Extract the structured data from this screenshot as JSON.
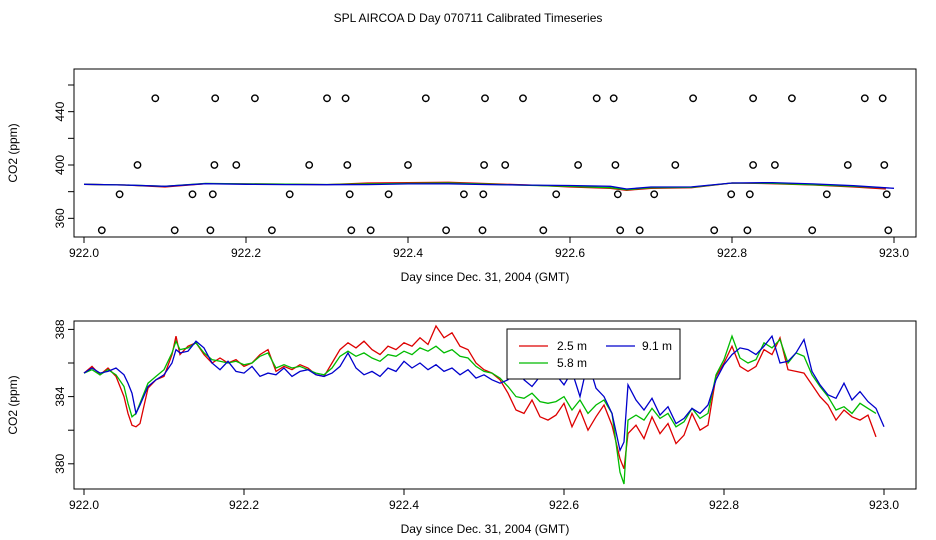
{
  "title": "SPL AIRCOA D  Day 070711  Calibrated Timeseries",
  "chart_data": [
    {
      "type": "scatter",
      "xlabel": "Day since Dec. 31, 2004 (GMT)",
      "ylabel": "CO2 (ppm)",
      "xlim": [
        922.0,
        923.0
      ],
      "ylim": [
        346,
        472
      ],
      "xticks": [
        922.0,
        922.2,
        922.4,
        922.6,
        922.8,
        923.0
      ],
      "xtick_labels": [
        "922.0",
        "922.2",
        "922.4",
        "922.6",
        "922.8",
        "923.0"
      ],
      "yticks": [
        360,
        380,
        400,
        420,
        440,
        460
      ],
      "ytick_labels": [
        "360",
        "",
        "400",
        "",
        "440",
        ""
      ],
      "calibration_points": {
        "name": "calibration samples",
        "values_450": [
          922.088,
          922.162,
          922.211,
          922.3,
          922.323,
          922.422,
          922.495,
          922.542,
          922.633,
          922.654,
          922.752,
          922.826,
          922.874,
          922.964,
          922.986
        ],
        "values_400": [
          922.066,
          922.161,
          922.188,
          922.278,
          922.325,
          922.4,
          922.494,
          922.52,
          922.61,
          922.656,
          922.73,
          922.826,
          922.853,
          922.943,
          922.988
        ],
        "values_378": [
          922.044,
          922.134,
          922.159,
          922.254,
          922.328,
          922.376,
          922.469,
          922.493,
          922.583,
          922.659,
          922.704,
          922.799,
          922.822,
          922.917,
          922.991
        ],
        "values_351": [
          922.022,
          922.112,
          922.156,
          922.232,
          922.33,
          922.354,
          922.447,
          922.492,
          922.567,
          922.662,
          922.686,
          922.778,
          922.819,
          922.899,
          922.993
        ]
      },
      "series": [
        {
          "name": "2.5 m",
          "color": "#dd0000",
          "x": [
            922.0,
            922.05,
            922.1,
            922.15,
            922.2,
            922.25,
            922.3,
            922.35,
            922.4,
            922.45,
            922.5,
            922.55,
            922.6,
            922.65,
            922.67,
            922.7,
            922.75,
            922.8,
            922.85,
            922.9,
            922.95,
            922.99
          ],
          "y": [
            385.5,
            385.0,
            383.5,
            386.0,
            385.8,
            385.6,
            385.3,
            386.5,
            386.8,
            387.0,
            386.0,
            385.0,
            383.5,
            382.5,
            381.0,
            382.5,
            383.0,
            386.5,
            386.0,
            385.0,
            383.5,
            382.0
          ]
        },
        {
          "name": "5.8 m",
          "color": "#00bb00",
          "x": [
            922.0,
            922.05,
            922.1,
            922.15,
            922.2,
            922.25,
            922.3,
            922.35,
            922.4,
            922.45,
            922.5,
            922.55,
            922.6,
            922.65,
            922.67,
            922.7,
            922.75,
            922.8,
            922.85,
            922.9,
            922.95,
            922.99
          ],
          "y": [
            385.5,
            385.0,
            384.0,
            386.2,
            385.8,
            385.7,
            385.4,
            385.8,
            386.2,
            386.5,
            385.6,
            384.8,
            384.0,
            383.0,
            381.5,
            383.0,
            383.3,
            386.5,
            386.3,
            385.2,
            384.0,
            382.8
          ]
        },
        {
          "name": "9.1 m",
          "color": "#0000cc",
          "x": [
            922.0,
            922.05,
            922.1,
            922.15,
            922.2,
            922.25,
            922.3,
            922.35,
            922.4,
            922.45,
            922.5,
            922.55,
            922.6,
            922.65,
            922.67,
            922.7,
            922.75,
            922.8,
            922.85,
            922.9,
            922.95,
            923.0
          ],
          "y": [
            385.5,
            385.0,
            384.0,
            386.0,
            385.5,
            385.3,
            385.2,
            385.3,
            385.8,
            385.9,
            385.3,
            384.9,
            384.6,
            384.0,
            382.0,
            383.5,
            383.6,
            386.5,
            386.8,
            385.8,
            384.5,
            382.5
          ]
        }
      ]
    },
    {
      "type": "line",
      "xlabel": "Day since Dec. 31, 2004 (GMT)",
      "ylabel": "CO2 (ppm)",
      "xlim": [
        922.0,
        923.0
      ],
      "ylim": [
        378.5,
        388.5
      ],
      "xticks": [
        922.0,
        922.2,
        922.4,
        922.6,
        922.8,
        923.0
      ],
      "xtick_labels": [
        "922.0",
        "922.2",
        "922.4",
        "922.6",
        "922.8",
        "923.0"
      ],
      "yticks": [
        380,
        382,
        384,
        386,
        388
      ],
      "ytick_labels": [
        "380",
        "",
        "384",
        "",
        "388"
      ],
      "legend": {
        "placement": "top-center",
        "entries": [
          "2.5 m",
          "9.1 m",
          "5.8 m"
        ]
      },
      "series": [
        {
          "name": "2.5 m",
          "color": "#dd0000",
          "x": [
            922.0,
            922.01,
            922.02,
            922.03,
            922.04,
            922.05,
            922.055,
            922.06,
            922.065,
            922.07,
            922.08,
            922.09,
            922.1,
            922.11,
            922.115,
            922.12,
            922.13,
            922.14,
            922.15,
            922.16,
            922.17,
            922.18,
            922.19,
            922.2,
            922.21,
            922.22,
            922.23,
            922.24,
            922.25,
            922.26,
            922.27,
            922.28,
            922.29,
            922.3,
            922.31,
            922.32,
            922.33,
            922.34,
            922.35,
            922.36,
            922.37,
            922.38,
            922.39,
            922.4,
            922.41,
            922.42,
            922.43,
            922.44,
            922.45,
            922.46,
            922.47,
            922.48,
            922.49,
            922.5,
            922.51,
            922.52,
            922.53,
            922.54,
            922.55,
            922.56,
            922.57,
            922.58,
            922.59,
            922.6,
            922.61,
            922.62,
            922.63,
            922.64,
            922.65,
            922.66,
            922.67,
            922.675,
            922.68,
            922.69,
            922.7,
            922.71,
            922.72,
            922.73,
            922.74,
            922.75,
            922.76,
            922.77,
            922.78,
            922.79,
            922.8,
            922.81,
            922.82,
            922.83,
            922.84,
            922.85,
            922.86,
            922.87,
            922.88,
            922.89,
            922.9,
            922.91,
            922.92,
            922.93,
            922.94,
            922.95,
            922.96,
            922.97,
            922.98,
            922.99
          ],
          "y": [
            385.4,
            385.8,
            385.3,
            385.7,
            385.2,
            384.0,
            383.0,
            382.3,
            382.2,
            382.4,
            384.5,
            385.0,
            385.2,
            386.5,
            387.6,
            386.5,
            387.0,
            387.2,
            386.5,
            386.0,
            386.3,
            386.0,
            386.2,
            385.8,
            386.0,
            386.5,
            386.8,
            385.5,
            385.8,
            385.6,
            385.9,
            385.7,
            385.3,
            385.2,
            386.0,
            386.8,
            387.2,
            386.9,
            387.3,
            386.8,
            386.5,
            387.0,
            386.8,
            387.2,
            387.0,
            387.5,
            387.1,
            388.2,
            387.5,
            387.8,
            387.0,
            386.8,
            386.0,
            385.6,
            385.4,
            385.0,
            384.2,
            383.2,
            383.0,
            383.8,
            382.8,
            382.6,
            382.9,
            383.6,
            382.2,
            383.2,
            382.0,
            382.8,
            383.5,
            382.3,
            380.3,
            379.7,
            381.8,
            382.3,
            381.5,
            382.8,
            381.8,
            382.4,
            381.2,
            381.7,
            383.0,
            382.0,
            382.3,
            385.2,
            386.0,
            387.0,
            385.8,
            385.5,
            385.8,
            386.8,
            386.5,
            387.5,
            385.6,
            385.5,
            385.4,
            384.7,
            384.0,
            383.5,
            382.6,
            383.2,
            382.8,
            382.6,
            382.9,
            381.6
          ]
        },
        {
          "name": "5.8 m",
          "color": "#00bb00",
          "x": [
            922.0,
            922.01,
            922.02,
            922.03,
            922.04,
            922.05,
            922.055,
            922.06,
            922.065,
            922.07,
            922.08,
            922.09,
            922.1,
            922.11,
            922.115,
            922.12,
            922.13,
            922.14,
            922.15,
            922.16,
            922.17,
            922.18,
            922.19,
            922.2,
            922.21,
            922.22,
            922.23,
            922.24,
            922.25,
            922.26,
            922.27,
            922.28,
            922.29,
            922.3,
            922.31,
            922.32,
            922.33,
            922.34,
            922.35,
            922.36,
            922.37,
            922.38,
            922.39,
            922.4,
            922.41,
            922.42,
            922.43,
            922.44,
            922.45,
            922.46,
            922.47,
            922.48,
            922.49,
            922.5,
            922.51,
            922.52,
            922.53,
            922.54,
            922.55,
            922.56,
            922.57,
            922.58,
            922.59,
            922.6,
            922.61,
            922.62,
            922.63,
            922.64,
            922.65,
            922.66,
            922.67,
            922.675,
            922.68,
            922.69,
            922.7,
            922.71,
            922.72,
            922.73,
            922.74,
            922.75,
            922.76,
            922.77,
            922.78,
            922.79,
            922.8,
            922.81,
            922.82,
            922.83,
            922.84,
            922.85,
            922.86,
            922.87,
            922.88,
            922.89,
            922.9,
            922.91,
            922.92,
            922.93,
            922.94,
            922.95,
            922.96,
            922.97,
            922.98,
            922.99
          ],
          "y": [
            385.4,
            385.6,
            385.3,
            385.6,
            385.3,
            384.6,
            383.6,
            382.8,
            383.0,
            383.6,
            384.8,
            385.2,
            385.6,
            386.6,
            387.3,
            386.8,
            386.9,
            387.2,
            386.6,
            386.2,
            386.1,
            386.0,
            386.1,
            385.9,
            386.0,
            386.4,
            386.6,
            385.7,
            385.9,
            385.7,
            385.8,
            385.6,
            385.4,
            385.3,
            385.7,
            386.4,
            386.7,
            386.4,
            386.6,
            386.3,
            386.1,
            386.5,
            386.4,
            386.7,
            386.5,
            386.9,
            386.7,
            387.0,
            386.6,
            386.8,
            386.4,
            386.3,
            385.8,
            385.5,
            385.4,
            385.1,
            384.6,
            384.0,
            383.9,
            384.2,
            383.7,
            383.6,
            383.7,
            384.0,
            383.2,
            383.8,
            383.0,
            383.5,
            383.8,
            383.0,
            379.5,
            378.8,
            382.6,
            382.9,
            382.6,
            383.3,
            382.7,
            383.0,
            382.2,
            382.5,
            383.3,
            382.7,
            383.0,
            385.3,
            386.2,
            387.6,
            386.3,
            386.0,
            386.2,
            387.2,
            386.9,
            387.4,
            386.0,
            386.6,
            386.4,
            385.3,
            384.6,
            384.0,
            383.2,
            383.4,
            383.0,
            383.6,
            383.3,
            383.0
          ]
        },
        {
          "name": "9.1 m",
          "color": "#0000cc",
          "x": [
            922.0,
            922.01,
            922.02,
            922.03,
            922.04,
            922.05,
            922.055,
            922.06,
            922.065,
            922.07,
            922.08,
            922.09,
            922.1,
            922.11,
            922.115,
            922.12,
            922.13,
            922.14,
            922.15,
            922.16,
            922.17,
            922.18,
            922.19,
            922.2,
            922.21,
            922.22,
            922.23,
            922.24,
            922.25,
            922.26,
            922.27,
            922.28,
            922.29,
            922.3,
            922.31,
            922.32,
            922.33,
            922.34,
            922.35,
            922.36,
            922.37,
            922.38,
            922.39,
            922.4,
            922.41,
            922.42,
            922.43,
            922.44,
            922.45,
            922.46,
            922.47,
            922.48,
            922.49,
            922.5,
            922.51,
            922.52,
            922.53,
            922.54,
            922.55,
            922.56,
            922.57,
            922.58,
            922.59,
            922.6,
            922.61,
            922.62,
            922.63,
            922.64,
            922.65,
            922.66,
            922.67,
            922.675,
            922.68,
            922.69,
            922.7,
            922.71,
            922.72,
            922.73,
            922.74,
            922.75,
            922.76,
            922.77,
            922.78,
            922.79,
            922.8,
            922.81,
            922.82,
            922.83,
            922.84,
            922.85,
            922.86,
            922.87,
            922.88,
            922.89,
            922.9,
            922.91,
            922.92,
            922.93,
            922.94,
            922.95,
            922.96,
            922.97,
            922.98,
            922.99,
            923.0
          ],
          "y": [
            385.4,
            385.7,
            385.4,
            385.5,
            385.7,
            385.3,
            384.8,
            384.2,
            383.0,
            383.5,
            384.6,
            385.0,
            385.3,
            386.0,
            386.8,
            386.6,
            386.7,
            387.3,
            386.9,
            386.0,
            385.6,
            386.1,
            385.5,
            385.4,
            385.8,
            385.2,
            385.4,
            385.3,
            385.7,
            385.2,
            385.5,
            385.6,
            385.3,
            385.2,
            385.4,
            385.8,
            386.6,
            385.7,
            385.3,
            385.5,
            385.2,
            385.7,
            385.5,
            386.1,
            385.7,
            386.0,
            385.6,
            385.9,
            385.5,
            385.7,
            385.3,
            385.6,
            385.1,
            385.3,
            385.0,
            384.8,
            385.0,
            385.9,
            385.0,
            384.6,
            385.2,
            385.4,
            385.3,
            384.7,
            385.5,
            384.0,
            386.1,
            384.5,
            384.0,
            383.0,
            380.8,
            381.3,
            384.7,
            383.8,
            383.2,
            383.9,
            382.9,
            383.4,
            382.4,
            382.7,
            383.3,
            383.0,
            383.5,
            385.0,
            385.9,
            386.5,
            386.9,
            386.8,
            386.5,
            387.0,
            387.6,
            386.0,
            386.1,
            386.6,
            387.4,
            385.5,
            384.7,
            384.1,
            383.9,
            384.8,
            383.8,
            384.3,
            383.7,
            383.3,
            382.2
          ]
        }
      ]
    }
  ]
}
